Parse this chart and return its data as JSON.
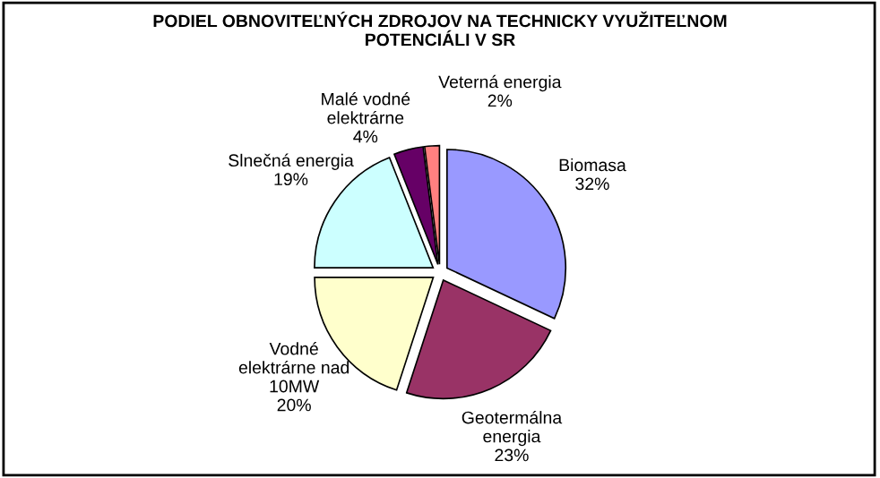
{
  "chart_data": {
    "type": "pie",
    "title": "PODIEL OBNOVITEĽNÝCH ZDROJOV NA TECHNICKY VYUŽITEĽNOM\nPOTENCIÁLI V SR",
    "categories": [
      "Biomasa",
      "Geotermálna\nenergia",
      "Vodné\nelektrárne nad\n10MW",
      "Slnečná energia",
      "Malé vodné\nelektrárne",
      "Veterná energia"
    ],
    "values": [
      32,
      23,
      20,
      19,
      4,
      2
    ],
    "value_labels": [
      "32%",
      "23%",
      "20%",
      "19%",
      "4%",
      "2%"
    ],
    "colors": [
      "#9999ff",
      "#993366",
      "#ffffcc",
      "#ccffff",
      "#660066",
      "#ff8080"
    ]
  }
}
